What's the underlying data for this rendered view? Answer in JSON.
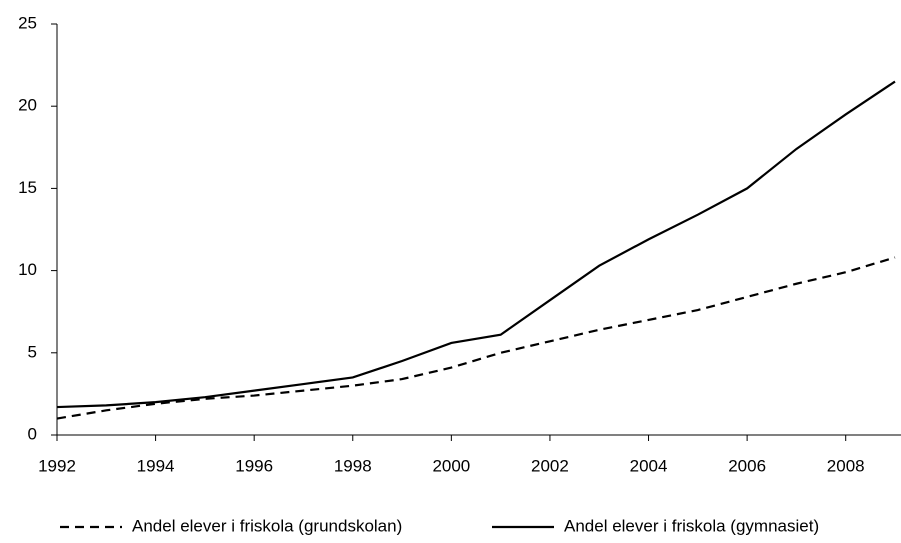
{
  "chart_data": {
    "type": "line",
    "x": [
      1992,
      1993,
      1994,
      1995,
      1996,
      1997,
      1998,
      1999,
      2000,
      2001,
      2002,
      2003,
      2004,
      2005,
      2006,
      2007,
      2008,
      2009
    ],
    "series": [
      {
        "name": "Andel elever i friskola (grundskolan)",
        "color": "#000000",
        "dash": true,
        "values": [
          1.0,
          1.5,
          1.9,
          2.2,
          2.4,
          2.7,
          3.0,
          3.4,
          4.1,
          5.0,
          5.7,
          6.4,
          7.0,
          7.6,
          8.4,
          9.2,
          9.9,
          10.8
        ]
      },
      {
        "name": "Andel elever i friskola (gymnasiet)",
        "color": "#000000",
        "dash": false,
        "values": [
          1.7,
          1.8,
          2.0,
          2.3,
          2.7,
          3.1,
          3.5,
          4.5,
          5.6,
          6.1,
          8.2,
          10.3,
          11.9,
          13.4,
          15.0,
          17.4,
          19.5,
          21.5
        ]
      }
    ],
    "xlim": [
      1992,
      2009
    ],
    "xticks": [
      1992,
      1994,
      1996,
      1998,
      2000,
      2002,
      2004,
      2006,
      2008
    ],
    "ylim": [
      0,
      25
    ],
    "yticks": [
      0,
      5,
      10,
      15,
      20,
      25
    ],
    "grid": false,
    "legend": "bottom"
  }
}
